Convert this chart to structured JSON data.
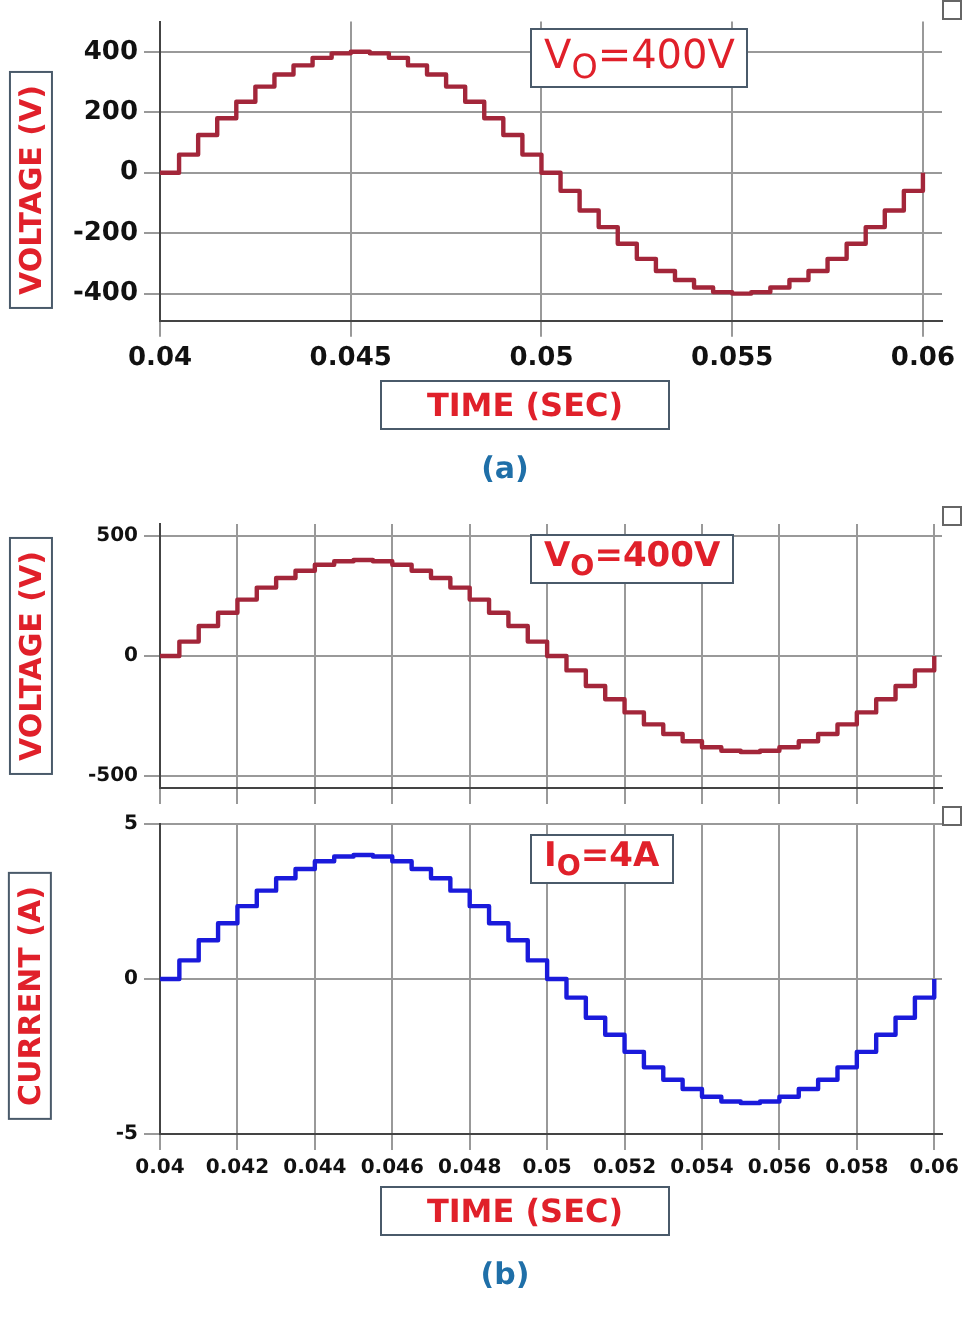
{
  "chart_data": [
    {
      "type": "step",
      "xlabel": "TIME (SEC)",
      "ylabel": "VOLTAGE (V)",
      "annotations": [
        "V$_{O}$=400V",
        "(a)"
      ],
      "x": [
        0.04,
        0.0405,
        0.041,
        0.0415,
        0.042,
        0.0425,
        0.043,
        0.0435,
        0.044,
        0.0445,
        0.045,
        0.0455,
        0.046,
        0.0465,
        0.047,
        0.0475,
        0.048,
        0.0485,
        0.049,
        0.0495,
        0.05,
        0.0505,
        0.051,
        0.0515,
        0.052,
        0.0525,
        0.053,
        0.0535,
        0.054,
        0.0545,
        0.055,
        0.0555,
        0.056,
        0.0565,
        0.057,
        0.0575,
        0.058,
        0.0585,
        0.059,
        0.0595,
        0.06
      ],
      "series": [
        {
          "color": "#a3263a",
          "values": [
            0,
            60,
            125,
            180,
            235,
            285,
            325,
            355,
            380,
            395,
            400,
            395,
            380,
            355,
            325,
            285,
            235,
            180,
            125,
            60,
            0,
            -60,
            -125,
            -180,
            -235,
            -285,
            -325,
            -355,
            -380,
            -395,
            -400,
            -395,
            -380,
            -355,
            -325,
            -285,
            -235,
            -180,
            -125,
            -60,
            0
          ]
        }
      ],
      "xlim": [
        0.04,
        0.0605
      ],
      "xticks": [
        0.04,
        0.045,
        0.05,
        0.055,
        0.06
      ],
      "ylim": [
        -490,
        500
      ],
      "yticks": [
        -400,
        -200,
        0,
        200,
        400
      ],
      "grid": true,
      "legend": false,
      "marker": "none",
      "line_style": "solid"
    },
    {
      "type": "step",
      "ylabel": "VOLTAGE (V)",
      "annotations": [
        "V$_{O}$=400V"
      ],
      "x": [
        0.04,
        0.0405,
        0.041,
        0.0415,
        0.042,
        0.0425,
        0.043,
        0.0435,
        0.044,
        0.0445,
        0.045,
        0.0455,
        0.046,
        0.0465,
        0.047,
        0.0475,
        0.048,
        0.0485,
        0.049,
        0.0495,
        0.05,
        0.0505,
        0.051,
        0.0515,
        0.052,
        0.0525,
        0.053,
        0.0535,
        0.054,
        0.0545,
        0.055,
        0.0555,
        0.056,
        0.0565,
        0.057,
        0.0575,
        0.058,
        0.0585,
        0.059,
        0.0595,
        0.06
      ],
      "series": [
        {
          "color": "#a3263a",
          "values": [
            0,
            60,
            125,
            180,
            235,
            285,
            325,
            355,
            380,
            395,
            400,
            395,
            380,
            355,
            325,
            285,
            235,
            180,
            125,
            60,
            0,
            -60,
            -125,
            -180,
            -235,
            -285,
            -325,
            -355,
            -380,
            -395,
            -400,
            -395,
            -380,
            -355,
            -325,
            -285,
            -235,
            -180,
            -125,
            -60,
            0
          ]
        }
      ],
      "xlim": [
        0.04,
        0.0602
      ],
      "xticks": [
        0.04,
        0.042,
        0.044,
        0.046,
        0.048,
        0.05,
        0.052,
        0.054,
        0.056,
        0.058,
        0.06
      ],
      "ylim": [
        -550,
        550
      ],
      "yticks": [
        -500,
        0,
        500
      ],
      "tick_labels": "y",
      "grid": true,
      "legend": false,
      "marker": "none",
      "line_style": "solid"
    },
    {
      "type": "step",
      "xlabel": "TIME (SEC)",
      "ylabel": "CURRENT (A)",
      "annotations": [
        "I$_{O}$=4A",
        "(b)"
      ],
      "x": [
        0.04,
        0.0405,
        0.041,
        0.0415,
        0.042,
        0.0425,
        0.043,
        0.0435,
        0.044,
        0.0445,
        0.045,
        0.0455,
        0.046,
        0.0465,
        0.047,
        0.0475,
        0.048,
        0.0485,
        0.049,
        0.0495,
        0.05,
        0.0505,
        0.051,
        0.0515,
        0.052,
        0.0525,
        0.053,
        0.0535,
        0.054,
        0.0545,
        0.055,
        0.0555,
        0.056,
        0.0565,
        0.057,
        0.0575,
        0.058,
        0.0585,
        0.059,
        0.0595,
        0.06
      ],
      "series": [
        {
          "color": "#1a1adb",
          "values": [
            0,
            0.6,
            1.25,
            1.8,
            2.35,
            2.85,
            3.25,
            3.55,
            3.8,
            3.95,
            4,
            3.95,
            3.8,
            3.55,
            3.25,
            2.85,
            2.35,
            1.8,
            1.25,
            0.6,
            0,
            -0.6,
            -1.25,
            -1.8,
            -2.35,
            -2.85,
            -3.25,
            -3.55,
            -3.8,
            -3.95,
            -4,
            -3.95,
            -3.8,
            -3.55,
            -3.25,
            -2.85,
            -2.35,
            -1.8,
            -1.25,
            -0.6,
            0
          ]
        }
      ],
      "xlim": [
        0.04,
        0.0602
      ],
      "xticks": [
        0.04,
        0.042,
        0.044,
        0.046,
        0.048,
        0.05,
        0.052,
        0.054,
        0.056,
        0.058,
        0.06
      ],
      "ylim": [
        -5,
        5
      ],
      "yticks": [
        -5,
        0,
        5
      ],
      "grid": true,
      "legend": false,
      "marker": "none",
      "line_style": "solid"
    }
  ]
}
